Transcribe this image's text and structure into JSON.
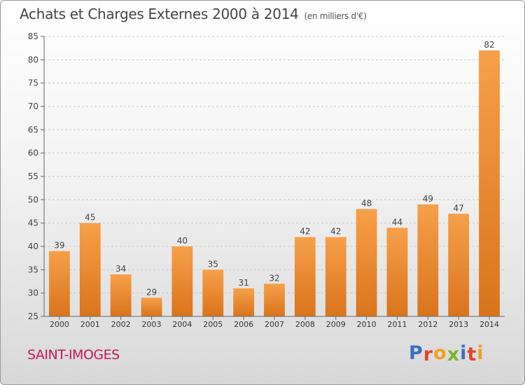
{
  "header": {
    "title": "Achats et Charges Externes 2000 à 2014",
    "subtitle": "(en milliers d'€)"
  },
  "footer": {
    "place": "SAINT-IMOGES",
    "brand": "Proxiti",
    "brand_letters": [
      {
        "ch": "P",
        "color": "#3b6fc4"
      },
      {
        "ch": "r",
        "color": "#e0462b"
      },
      {
        "ch": "o",
        "color": "#f0a020"
      },
      {
        "ch": "x",
        "color": "#7ab630"
      },
      {
        "ch": "i",
        "color": "#3b6fc4"
      },
      {
        "ch": "t",
        "color": "#e0462b"
      },
      {
        "ch": "i",
        "color": "#f0a020"
      }
    ]
  },
  "chart_data": {
    "type": "bar",
    "categories": [
      "2000",
      "2001",
      "2002",
      "2003",
      "2004",
      "2005",
      "2006",
      "2007",
      "2008",
      "2009",
      "2010",
      "2011",
      "2012",
      "2013",
      "2014"
    ],
    "values": [
      39,
      45,
      34,
      29,
      40,
      35,
      31,
      32,
      42,
      42,
      48,
      44,
      49,
      47,
      82
    ],
    "ylim": [
      25,
      85
    ],
    "yticks": [
      25,
      30,
      35,
      40,
      45,
      50,
      55,
      60,
      65,
      70,
      75,
      80,
      85
    ],
    "grid": true,
    "bar_color_top": "#f7a04a",
    "bar_color_bottom": "#d9741c"
  }
}
